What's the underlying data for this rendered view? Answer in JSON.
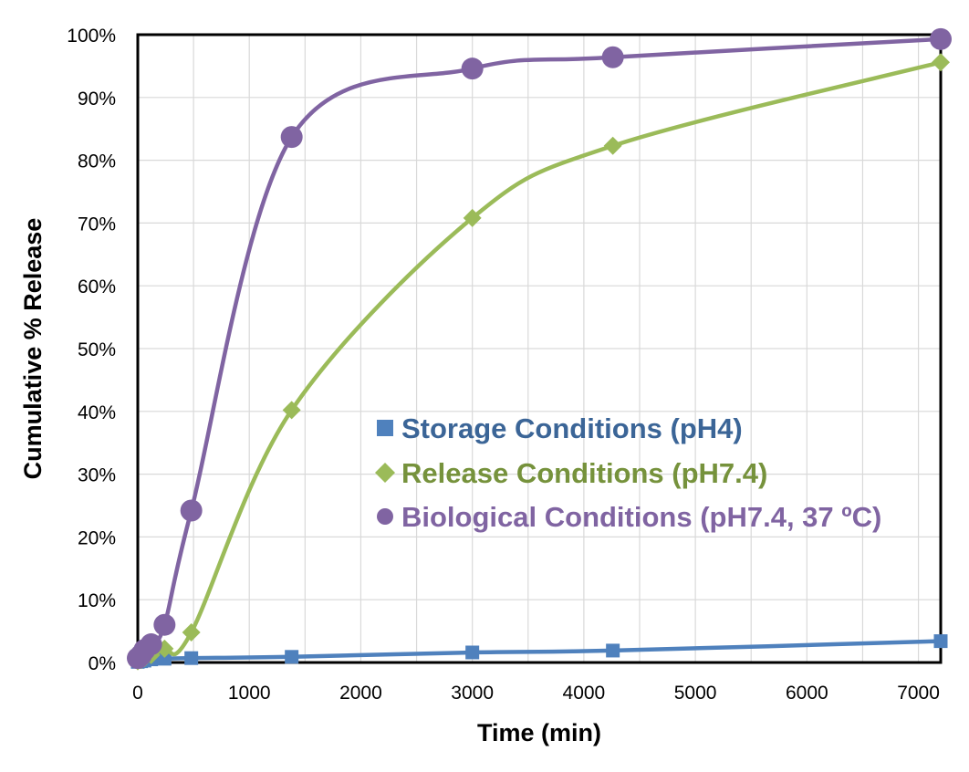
{
  "chart_data": {
    "type": "line",
    "title": "",
    "xlabel": "Time (min)",
    "ylabel": "Cumulative % Release",
    "xlim": [
      0,
      7200
    ],
    "ylim": [
      0,
      100
    ],
    "x_ticks": [
      0,
      1000,
      2000,
      3000,
      4000,
      5000,
      6000,
      7000
    ],
    "x_tick_labels": [
      "0",
      "1000",
      "2000",
      "3000",
      "4000",
      "5000",
      "6000",
      "7000"
    ],
    "y_ticks": [
      0,
      10,
      20,
      30,
      40,
      50,
      60,
      70,
      80,
      90,
      100
    ],
    "y_tick_labels": [
      "0%",
      "10%",
      "20%",
      "30%",
      "40%",
      "50%",
      "60%",
      "70%",
      "80%",
      "90%",
      "100%"
    ],
    "grid": true,
    "legend_position": "center-right",
    "series": [
      {
        "name": "Storage Conditions (pH4)",
        "marker": "square",
        "color": "#4F81BD",
        "text_color": "#3B6597",
        "x": [
          0,
          30,
          60,
          120,
          240,
          480,
          1380,
          3000,
          4260,
          7200
        ],
        "y": [
          0.1,
          0.2,
          0.3,
          0.5,
          0.6,
          0.7,
          0.9,
          1.6,
          1.9,
          3.4
        ]
      },
      {
        "name": "Release Conditions (pH7.4)",
        "marker": "diamond",
        "color": "#9BBB59",
        "text_color": "#76923C",
        "x": [
          0,
          30,
          60,
          120,
          240,
          480,
          1380,
          3000,
          4260,
          7200
        ],
        "y": [
          0.2,
          0.4,
          0.7,
          1.2,
          2.2,
          4.8,
          40.2,
          70.8,
          82.3,
          95.6
        ]
      },
      {
        "name": "Biological Conditions (pH7.4, 37 ºC)",
        "marker": "circle",
        "color": "#8064A2",
        "text_color": "#8064A2",
        "x": [
          0,
          30,
          60,
          120,
          240,
          480,
          1380,
          3000,
          4260,
          7200
        ],
        "y": [
          0.7,
          1.2,
          2.0,
          2.9,
          6.0,
          24.2,
          83.7,
          94.6,
          96.4,
          99.3
        ]
      }
    ]
  }
}
